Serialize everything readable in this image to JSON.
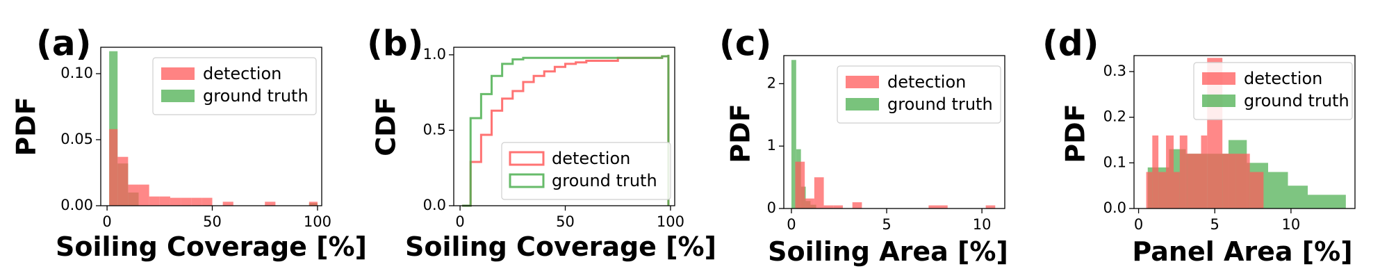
{
  "colors": {
    "detection": "#ff5a5a",
    "ground_truth": "#4caf50",
    "overlap": "#6b6a1f"
  },
  "chart_data": [
    {
      "panel": "(a)",
      "type": "bar",
      "kind": "histogram",
      "ylabel": "PDF",
      "xlabel": "Soiling Coverage [%]",
      "xlim": [
        -3,
        102
      ],
      "ylim": [
        0,
        0.12
      ],
      "xticks": [
        0,
        50,
        100
      ],
      "xtick_labels": [
        "0",
        "50",
        "100"
      ],
      "yticks": [
        0,
        0.05,
        0.1
      ],
      "ytick_labels": [
        "0.00",
        "0.05",
        "0.10"
      ],
      "legend": {
        "placement": "top-right",
        "entries": [
          "detection",
          "ground truth"
        ]
      },
      "series": [
        {
          "name": "detection",
          "bins": [
            [
              1,
              5,
              0.058
            ],
            [
              5,
              10,
              0.037
            ],
            [
              10,
              15,
              0.016
            ],
            [
              15,
              20,
              0.016
            ],
            [
              20,
              25,
              0.007
            ],
            [
              25,
              30,
              0.007
            ],
            [
              30,
              35,
              0.006
            ],
            [
              35,
              40,
              0.006
            ],
            [
              40,
              45,
              0.006
            ],
            [
              45,
              50,
              0.006
            ],
            [
              55,
              60,
              0.003
            ],
            [
              75,
              80,
              0.003
            ],
            [
              96,
              100,
              0.003
            ]
          ]
        },
        {
          "name": "ground truth",
          "bins": [
            [
              1,
              5,
              0.117
            ],
            [
              5,
              10,
              0.032
            ],
            [
              10,
              15,
              0.01
            ],
            [
              96,
              100,
              0.002
            ]
          ]
        }
      ]
    },
    {
      "panel": "(b)",
      "type": "line",
      "kind": "step-cdf",
      "ylabel": "CDF",
      "xlabel": "Soiling Coverage [%]",
      "xlim": [
        -3,
        102
      ],
      "ylim": [
        0,
        1.05
      ],
      "xticks": [
        0,
        50,
        100
      ],
      "xtick_labels": [
        "0",
        "50",
        "100"
      ],
      "yticks": [
        0,
        0.5,
        1.0
      ],
      "ytick_labels": [
        "0.0",
        "0.5",
        "1.0"
      ],
      "legend": {
        "placement": "lower-right",
        "entries": [
          "detection",
          "ground truth"
        ]
      },
      "series": [
        {
          "name": "detection",
          "x": [
            1,
            5,
            10,
            15,
            20,
            25,
            30,
            35,
            40,
            45,
            50,
            55,
            60,
            75,
            80,
            96,
            99,
            99
          ],
          "y": [
            0,
            0.29,
            0.47,
            0.63,
            0.71,
            0.76,
            0.82,
            0.86,
            0.89,
            0.92,
            0.94,
            0.95,
            0.96,
            0.98,
            0.98,
            0.99,
            1.0,
            0
          ]
        },
        {
          "name": "ground truth",
          "x": [
            1,
            5,
            10,
            15,
            20,
            25,
            30,
            96,
            99,
            99
          ],
          "y": [
            0,
            0.58,
            0.74,
            0.86,
            0.94,
            0.97,
            0.98,
            0.99,
            1.0,
            0
          ]
        }
      ]
    },
    {
      "panel": "(c)",
      "type": "bar",
      "kind": "histogram",
      "ylabel": "PDF",
      "xlabel": "Soiling Area [%]",
      "xlim": [
        -0.4,
        11.2
      ],
      "ylim": [
        0,
        2.45
      ],
      "xticks": [
        0,
        5,
        10
      ],
      "xtick_labels": [
        "0",
        "5",
        "10"
      ],
      "yticks": [
        0,
        1,
        2
      ],
      "ytick_labels": [
        "0",
        "1",
        "2"
      ],
      "legend": {
        "placement": "top-right",
        "entries": [
          "detection",
          "ground truth"
        ]
      },
      "series": [
        {
          "name": "detection",
          "bins": [
            [
              0.2,
              0.7,
              0.75
            ],
            [
              0.7,
              1.2,
              0.16
            ],
            [
              1.2,
              1.7,
              0.5
            ],
            [
              1.7,
              2.2,
              0.05
            ],
            [
              2.2,
              2.7,
              0.05
            ],
            [
              3.2,
              3.7,
              0.1
            ],
            [
              7.2,
              8.2,
              0.05
            ],
            [
              10.2,
              10.7,
              0.05
            ]
          ]
        },
        {
          "name": "ground truth",
          "bins": [
            [
              0.0,
              0.25,
              2.38
            ],
            [
              0.25,
              0.5,
              0.95
            ],
            [
              0.5,
              0.75,
              0.35
            ],
            [
              0.75,
              1.0,
              0.12
            ],
            [
              1.0,
              1.3,
              0.06
            ]
          ]
        }
      ]
    },
    {
      "panel": "(d)",
      "type": "bar",
      "kind": "histogram",
      "ylabel": "PDF",
      "xlabel": "Panel Area [%]",
      "xlim": [
        -0.3,
        14.2
      ],
      "ylim": [
        0,
        0.335
      ],
      "xticks": [
        0,
        5,
        10
      ],
      "xtick_labels": [
        "0",
        "5",
        "10"
      ],
      "yticks": [
        0,
        0.1,
        0.2,
        0.3
      ],
      "ytick_labels": [
        "0.0",
        "0.1",
        "0.2",
        "0.3"
      ],
      "legend": {
        "placement": "top-right",
        "entries": [
          "detection",
          "ground truth"
        ]
      },
      "series": [
        {
          "name": "detection",
          "bins": [
            [
              0.5,
              0.9,
              0.08
            ],
            [
              0.9,
              1.3,
              0.16
            ],
            [
              1.3,
              1.8,
              0.08
            ],
            [
              1.8,
              2.3,
              0.16
            ],
            [
              2.3,
              2.7,
              0.08
            ],
            [
              2.7,
              3.2,
              0.16
            ],
            [
              3.2,
              3.6,
              0.12
            ],
            [
              3.6,
              4.1,
              0.12
            ],
            [
              4.1,
              4.5,
              0.16
            ],
            [
              4.5,
              5.5,
              0.33
            ],
            [
              5.5,
              6.4,
              0.12
            ],
            [
              6.4,
              7.3,
              0.12
            ],
            [
              7.3,
              8.2,
              0.08
            ]
          ]
        },
        {
          "name": "ground truth",
          "bins": [
            [
              0.6,
              2.0,
              0.09
            ],
            [
              2.0,
              3.1,
              0.13
            ],
            [
              3.1,
              4.5,
              0.12
            ],
            [
              4.5,
              5.9,
              0.12
            ],
            [
              5.9,
              7.1,
              0.15
            ],
            [
              7.1,
              8.5,
              0.1
            ],
            [
              8.5,
              9.8,
              0.08
            ],
            [
              9.8,
              11.1,
              0.05
            ],
            [
              11.1,
              13.6,
              0.03
            ]
          ]
        }
      ]
    }
  ]
}
